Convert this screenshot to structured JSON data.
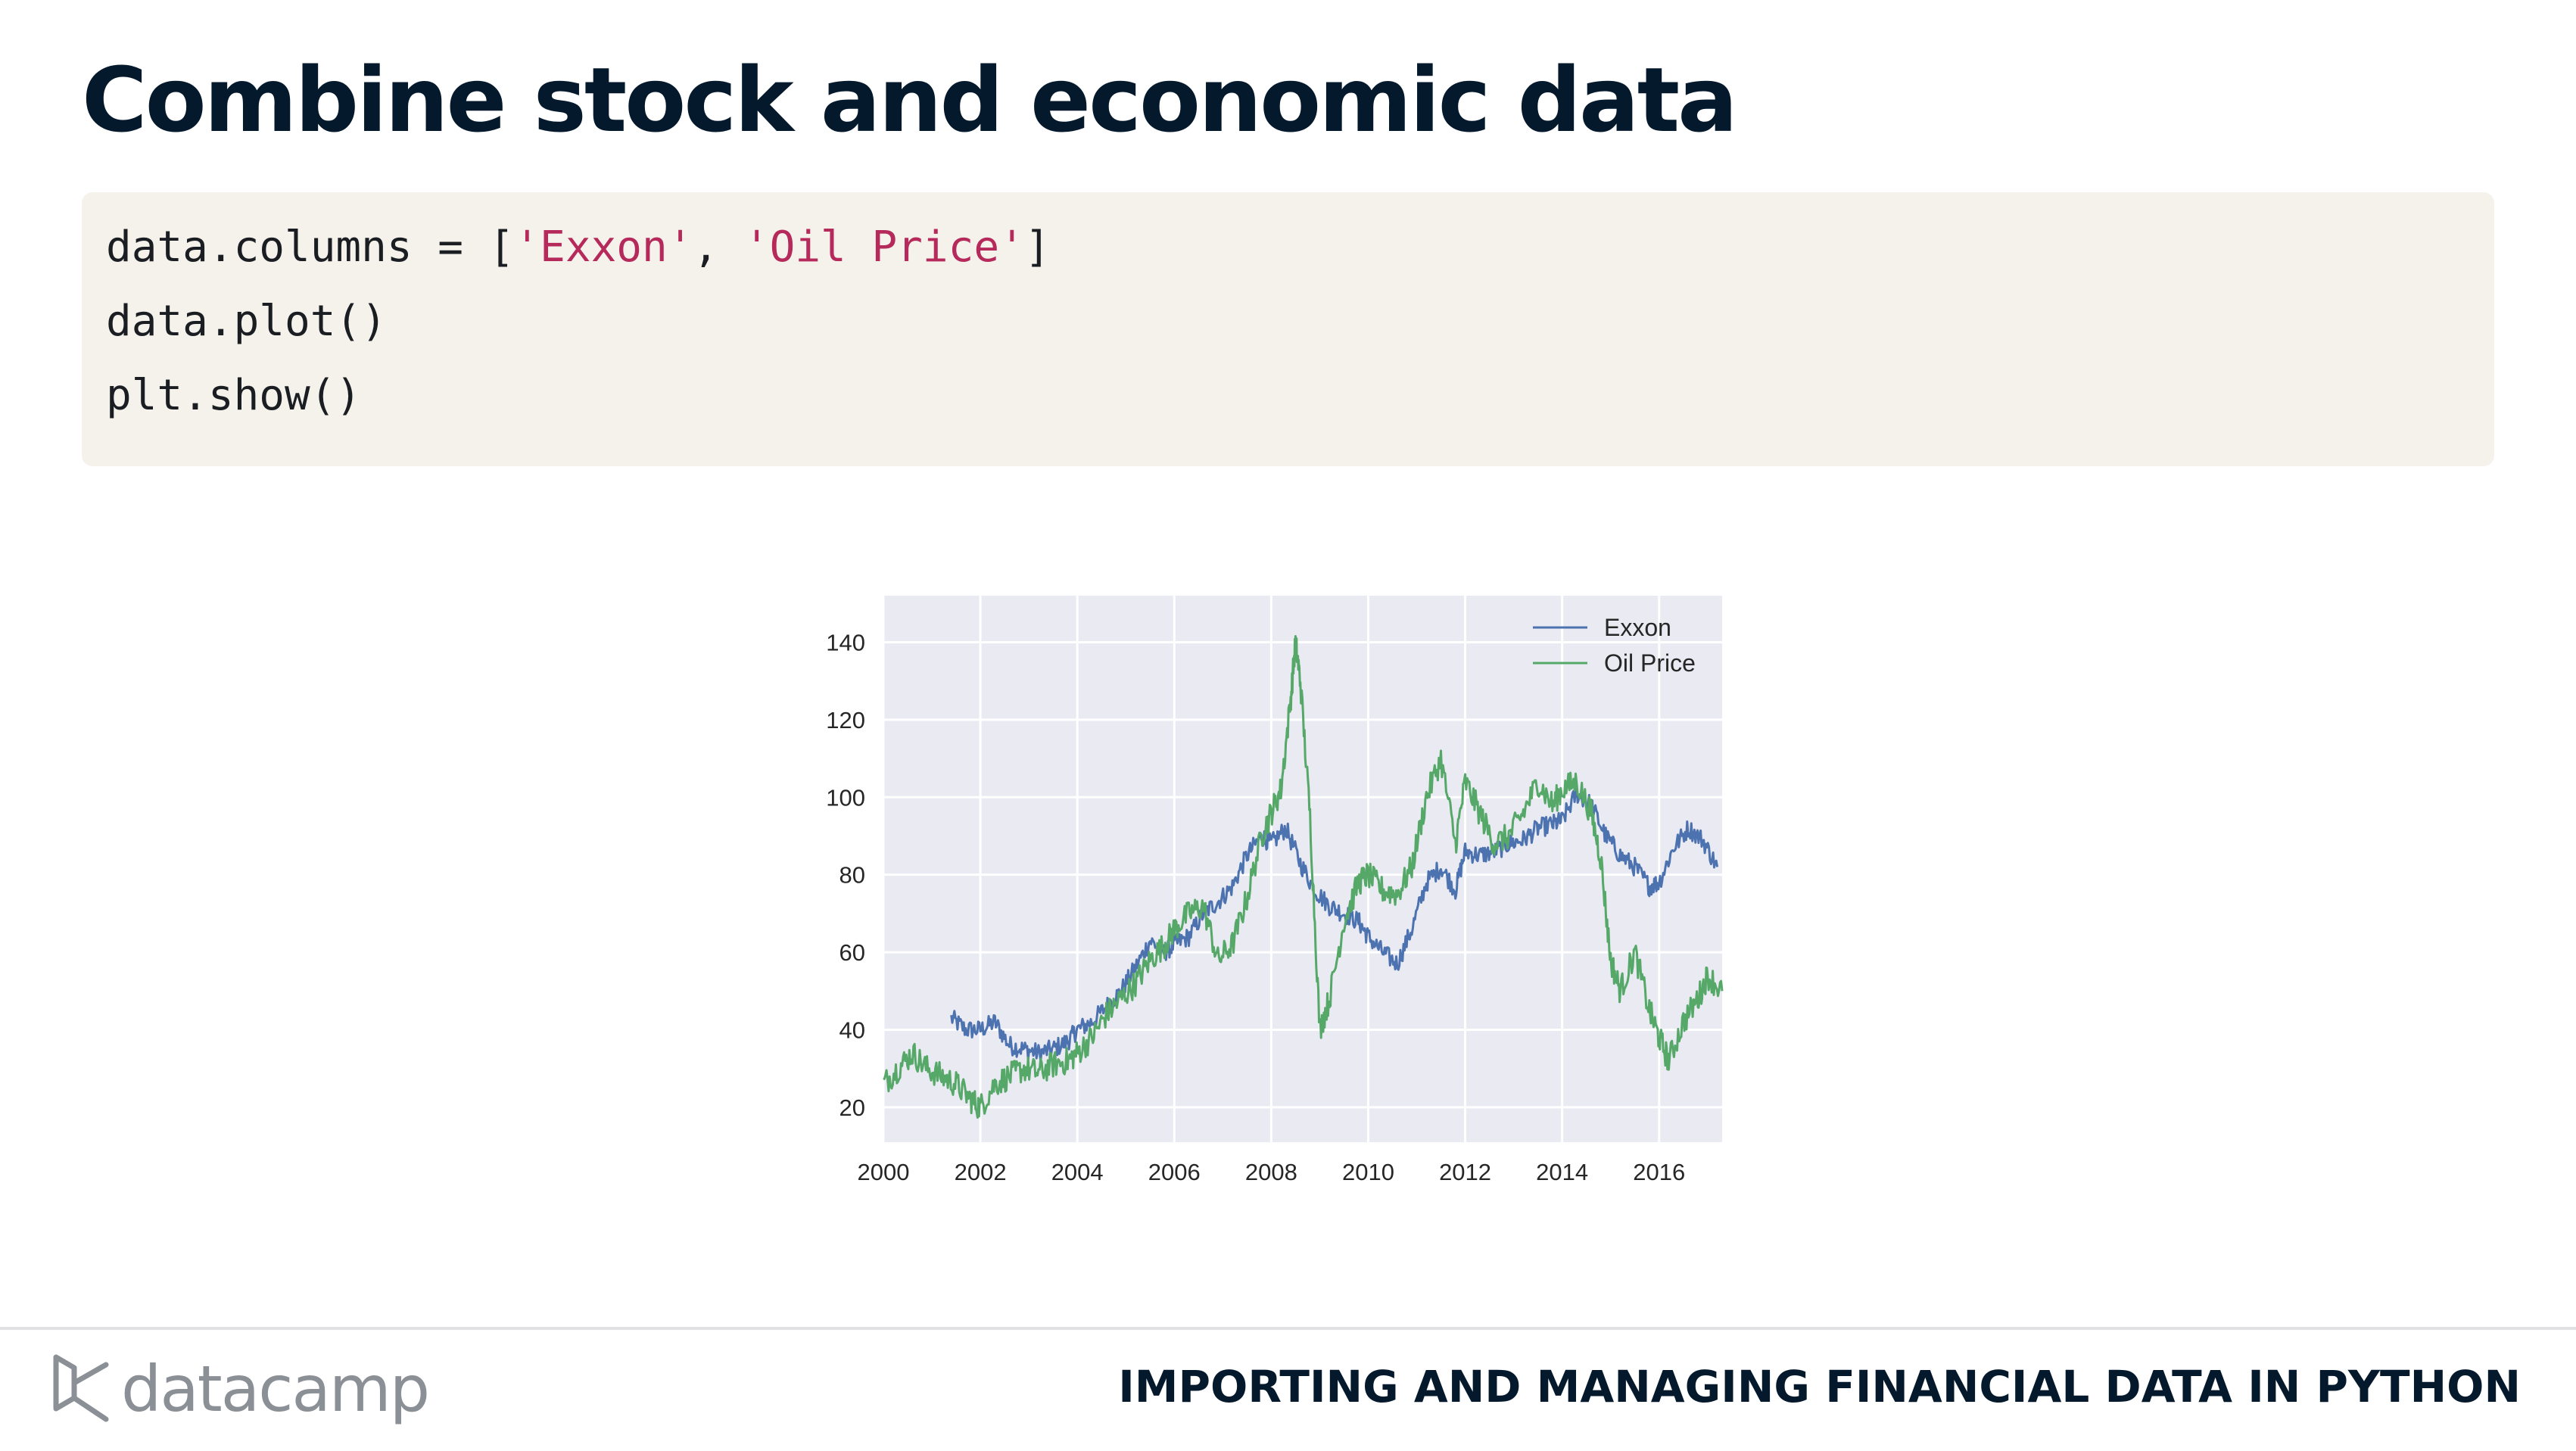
{
  "slide": {
    "title": "Combine stock and economic data"
  },
  "code": {
    "line1_pre": "data.columns = [",
    "line1_str1": "'Exxon'",
    "line1_sep": ", ",
    "line1_str2": "'Oil Price'",
    "line1_post": "]",
    "line2": "data.plot()",
    "line3": "plt.show()"
  },
  "footer": {
    "logo_text": "datacamp",
    "course_title": "IMPORTING AND MANAGING FINANCIAL DATA IN PYTHON"
  },
  "colors": {
    "exxon": "#4c72b0",
    "oil": "#55a868",
    "plot_bg": "#eaeaf2"
  },
  "chart_data": {
    "type": "line",
    "title": "",
    "xlabel": "",
    "ylabel": "",
    "xlim": [
      2000.0,
      2017.3
    ],
    "ylim": [
      11,
      152
    ],
    "x_ticks": [
      2000,
      2002,
      2004,
      2006,
      2008,
      2010,
      2012,
      2014,
      2016
    ],
    "y_ticks": [
      20,
      40,
      60,
      80,
      100,
      120,
      140
    ],
    "grid": true,
    "legend": "top-right",
    "series": [
      {
        "name": "Exxon",
        "color": "#4c72b0",
        "x": [
          2001.4,
          2001.7,
          2002.0,
          2002.3,
          2002.6,
          2002.9,
          2003.2,
          2003.5,
          2003.8,
          2004.0,
          2004.3,
          2004.6,
          2004.9,
          2005.2,
          2005.5,
          2005.8,
          2006.0,
          2006.3,
          2006.6,
          2006.9,
          2007.2,
          2007.5,
          2007.8,
          2008.0,
          2008.3,
          2008.6,
          2008.9,
          2009.2,
          2009.5,
          2009.8,
          2010.0,
          2010.3,
          2010.6,
          2010.9,
          2011.2,
          2011.5,
          2011.8,
          2012.0,
          2012.3,
          2012.6,
          2012.9,
          2013.2,
          2013.5,
          2013.8,
          2014.0,
          2014.3,
          2014.6,
          2014.9,
          2015.2,
          2015.5,
          2015.8,
          2016.0,
          2016.3,
          2016.6,
          2016.9,
          2017.2
        ],
        "y": [
          43,
          40,
          40,
          42,
          36,
          35,
          34,
          35,
          37,
          40,
          42,
          46,
          50,
          56,
          63,
          60,
          62,
          64,
          70,
          73,
          77,
          85,
          90,
          88,
          92,
          83,
          76,
          72,
          70,
          68,
          64,
          60,
          57,
          66,
          78,
          82,
          76,
          86,
          85,
          86,
          88,
          89,
          92,
          93,
          94,
          101,
          98,
          90,
          85,
          82,
          77,
          78,
          87,
          92,
          89,
          82
        ]
      },
      {
        "name": "Oil Price",
        "color": "#55a868",
        "x": [
          2000.0,
          2000.3,
          2000.6,
          2000.9,
          2001.2,
          2001.5,
          2001.8,
          2002.0,
          2002.3,
          2002.6,
          2002.9,
          2003.2,
          2003.5,
          2003.8,
          2004.0,
          2004.3,
          2004.6,
          2004.9,
          2005.2,
          2005.5,
          2005.8,
          2006.0,
          2006.3,
          2006.6,
          2006.9,
          2007.2,
          2007.5,
          2007.8,
          2008.0,
          2008.2,
          2008.4,
          2008.5,
          2008.6,
          2008.8,
          2009.0,
          2009.2,
          2009.5,
          2009.8,
          2010.0,
          2010.3,
          2010.6,
          2010.9,
          2011.2,
          2011.5,
          2011.8,
          2012.0,
          2012.3,
          2012.6,
          2012.9,
          2013.2,
          2013.5,
          2013.8,
          2014.0,
          2014.3,
          2014.6,
          2014.8,
          2015.0,
          2015.2,
          2015.5,
          2015.8,
          2016.0,
          2016.2,
          2016.5,
          2016.8,
          2017.0,
          2017.3
        ],
        "y": [
          26,
          30,
          34,
          30,
          28,
          26,
          22,
          20,
          26,
          28,
          30,
          29,
          31,
          32,
          34,
          38,
          44,
          48,
          52,
          58,
          62,
          66,
          70,
          72,
          58,
          62,
          74,
          90,
          96,
          102,
          125,
          140,
          130,
          95,
          40,
          48,
          68,
          78,
          80,
          76,
          75,
          82,
          100,
          110,
          88,
          104,
          96,
          88,
          90,
          96,
          104,
          98,
          102,
          104,
          96,
          84,
          58,
          50,
          60,
          45,
          38,
          32,
          42,
          48,
          54,
          50
        ]
      }
    ]
  }
}
